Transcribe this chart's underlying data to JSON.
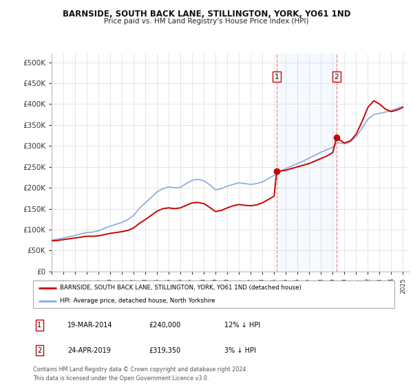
{
  "title": "BARNSIDE, SOUTH BACK LANE, STILLINGTON, YORK, YO61 1ND",
  "subtitle": "Price paid vs. HM Land Registry's House Price Index (HPI)",
  "ylabel_ticks": [
    "£0",
    "£50K",
    "£100K",
    "£150K",
    "£200K",
    "£250K",
    "£300K",
    "£350K",
    "£400K",
    "£450K",
    "£500K"
  ],
  "ytick_vals": [
    0,
    50000,
    100000,
    150000,
    200000,
    250000,
    300000,
    350000,
    400000,
    450000,
    500000
  ],
  "ylim": [
    0,
    520000
  ],
  "xlim_start": 1995.0,
  "xlim_end": 2025.5,
  "background_color": "#ffffff",
  "grid_color": "#e0e0e0",
  "sale1_x": 2014.22,
  "sale1_y": 240000,
  "sale2_x": 2019.32,
  "sale2_y": 319350,
  "red_line_color": "#cc0000",
  "blue_line_color": "#88aadd",
  "vline_color": "#ee8888",
  "legend_label_red": "BARNSIDE, SOUTH BACK LANE, STILLINGTON, YORK, YO61 1ND (detached house)",
  "legend_label_blue": "HPI: Average price, detached house, North Yorkshire",
  "footer_text": "Contains HM Land Registry data © Crown copyright and database right 2024.\nThis data is licensed under the Open Government Licence v3.0.",
  "table_row1": [
    "1",
    "19-MAR-2014",
    "£240,000",
    "12% ↓ HPI"
  ],
  "table_row2": [
    "2",
    "24-APR-2019",
    "£319,350",
    "3% ↓ HPI"
  ],
  "hpi_years": [
    1995,
    1995.5,
    1996,
    1996.5,
    1997,
    1997.5,
    1998,
    1998.5,
    1999,
    1999.5,
    2000,
    2000.5,
    2001,
    2001.5,
    2002,
    2002.5,
    2003,
    2003.5,
    2004,
    2004.5,
    2005,
    2005.5,
    2006,
    2006.5,
    2007,
    2007.5,
    2008,
    2008.5,
    2009,
    2009.5,
    2010,
    2010.5,
    2011,
    2011.5,
    2012,
    2012.5,
    2013,
    2013.5,
    2014,
    2014.22,
    2014.5,
    2015,
    2015.5,
    2016,
    2016.5,
    2017,
    2017.5,
    2018,
    2018.5,
    2019,
    2019.32,
    2019.5,
    2020,
    2020.5,
    2021,
    2021.5,
    2022,
    2022.5,
    2023,
    2023.5,
    2024,
    2024.5,
    2025
  ],
  "hpi_vals": [
    75000,
    77000,
    80000,
    83000,
    86000,
    90000,
    93000,
    94000,
    97000,
    103000,
    108000,
    113000,
    117000,
    124000,
    134000,
    151000,
    164000,
    177000,
    190000,
    198000,
    202000,
    200000,
    201000,
    210000,
    218000,
    220000,
    217000,
    207000,
    195000,
    198000,
    204000,
    208000,
    212000,
    210000,
    208000,
    210000,
    214000,
    222000,
    230000,
    232000,
    238000,
    246000,
    252000,
    258000,
    264000,
    271000,
    278000,
    285000,
    291000,
    297000,
    305000,
    308000,
    305000,
    310000,
    322000,
    342000,
    364000,
    375000,
    378000,
    381000,
    384000,
    390000,
    395000
  ],
  "red_vals": [
    73000,
    74000,
    76000,
    78000,
    80000,
    82000,
    84000,
    84000,
    85000,
    88000,
    91000,
    93000,
    95000,
    98000,
    104000,
    115000,
    124000,
    134000,
    144000,
    150000,
    152000,
    150000,
    152000,
    158000,
    164000,
    165000,
    162000,
    153000,
    143000,
    146000,
    152000,
    157000,
    160000,
    158000,
    157000,
    159000,
    164000,
    172000,
    180000,
    240000,
    240000,
    242000,
    246000,
    250000,
    254000,
    258000,
    264000,
    270000,
    276000,
    284000,
    319350,
    316000,
    307000,
    312000,
    328000,
    358000,
    392000,
    408000,
    400000,
    388000,
    382000,
    386000,
    392000
  ]
}
